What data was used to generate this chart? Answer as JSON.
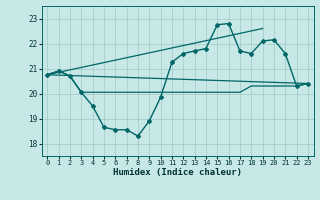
{
  "xlabel": "Humidex (Indice chaleur)",
  "bg_color": "#c8e8e8",
  "line_color": "#006666",
  "xlim": [
    -0.5,
    23.5
  ],
  "ylim": [
    17.5,
    23.5
  ],
  "yticks": [
    18,
    19,
    20,
    21,
    22,
    23
  ],
  "xticks": [
    0,
    1,
    2,
    3,
    4,
    5,
    6,
    7,
    8,
    9,
    10,
    11,
    12,
    13,
    14,
    15,
    16,
    17,
    18,
    19,
    20,
    21,
    22,
    23
  ],
  "main_line": {
    "x": [
      0,
      1,
      2,
      3,
      4,
      5,
      6,
      7,
      8,
      9,
      10,
      11,
      12,
      13,
      14,
      15,
      16,
      17,
      18,
      19,
      20,
      21,
      22,
      23
    ],
    "y": [
      20.75,
      20.9,
      20.7,
      20.05,
      19.5,
      18.65,
      18.55,
      18.55,
      18.3,
      18.9,
      19.85,
      21.25,
      21.6,
      21.7,
      21.8,
      22.75,
      22.8,
      21.7,
      21.6,
      22.1,
      22.15,
      21.6,
      20.3,
      20.4
    ]
  },
  "flat_line": {
    "x": [
      0,
      1,
      2,
      3,
      4,
      5,
      6,
      7,
      8,
      9,
      10,
      11,
      12,
      13,
      14,
      15,
      16,
      17,
      18,
      19,
      20,
      21,
      22,
      23
    ],
    "y": [
      20.75,
      20.9,
      20.7,
      20.05,
      20.05,
      20.05,
      20.05,
      20.05,
      20.05,
      20.05,
      20.05,
      20.05,
      20.05,
      20.05,
      20.05,
      20.05,
      20.05,
      20.05,
      20.3,
      20.3,
      20.3,
      20.3,
      20.3,
      20.4
    ]
  },
  "trend_line1": {
    "x": [
      0,
      19
    ],
    "y": [
      20.75,
      22.6
    ]
  },
  "trend_line2": {
    "x": [
      0,
      23
    ],
    "y": [
      20.75,
      20.4
    ]
  }
}
